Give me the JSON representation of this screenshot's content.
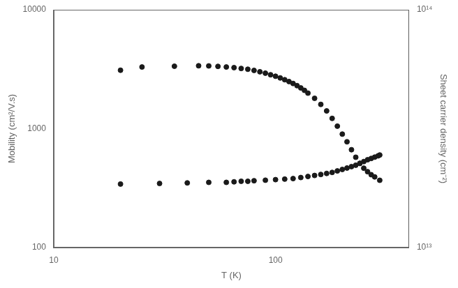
{
  "chart_data": {
    "type": "scatter",
    "xlabel": "T (K)",
    "ylabel": "Mobility (cm²/V.s)",
    "y2label": "Sheet carrier density (cm⁻²)",
    "log": true,
    "grid": false,
    "xlim": [
      10,
      400
    ],
    "xticks": [
      10,
      100
    ],
    "ylim": [
      100,
      10000
    ],
    "yticks": [
      100,
      1000,
      10000
    ],
    "y2lim": [
      10000000000000.0,
      100000000000000.0
    ],
    "y2ticks": [
      {
        "value": 10000000000000.0,
        "label": "10¹³"
      },
      {
        "value": 100000000000000.0,
        "label": "10¹⁴"
      }
    ],
    "series": [
      {
        "color": "#1a1a1a",
        "x": [
          20,
          25,
          35,
          45,
          50,
          55,
          60,
          65,
          70,
          75,
          80,
          85,
          90,
          95,
          100,
          105,
          110,
          115,
          120,
          125,
          130,
          135,
          140,
          150,
          160,
          170,
          180,
          190,
          200,
          210,
          220,
          230,
          240,
          250,
          260,
          270,
          280,
          295
        ],
        "values": [
          3100,
          3300,
          3350,
          3380,
          3370,
          3340,
          3300,
          3260,
          3210,
          3160,
          3090,
          3010,
          2930,
          2840,
          2760,
          2670,
          2580,
          2490,
          2400,
          2300,
          2200,
          2100,
          1990,
          1800,
          1600,
          1410,
          1220,
          1050,
          900,
          775,
          665,
          575,
          510,
          465,
          435,
          410,
          393,
          368
        ]
      },
      {
        "color": "#1a1a1a",
        "axis": "y2",
        "x": [
          20,
          30,
          40,
          50,
          60,
          65,
          70,
          75,
          80,
          90,
          100,
          110,
          120,
          130,
          140,
          150,
          160,
          170,
          180,
          190,
          200,
          210,
          220,
          230,
          240,
          250,
          260,
          270,
          280,
          290,
          295
        ],
        "values": [
          18500000000000.0,
          18600000000000.0,
          18700000000000.0,
          18800000000000.0,
          18800000000000.0,
          18900000000000.0,
          19000000000000.0,
          19000000000000.0,
          19100000000000.0,
          19200000000000.0,
          19300000000000.0,
          19400000000000.0,
          19500000000000.0,
          19700000000000.0,
          19900000000000.0,
          20100000000000.0,
          20300000000000.0,
          20500000000000.0,
          20700000000000.0,
          21000000000000.0,
          21300000000000.0,
          21600000000000.0,
          21900000000000.0,
          22200000000000.0,
          22600000000000.0,
          23000000000000.0,
          23400000000000.0,
          23700000000000.0,
          24000000000000.0,
          24300000000000.0,
          24500000000000.0
        ]
      }
    ]
  }
}
